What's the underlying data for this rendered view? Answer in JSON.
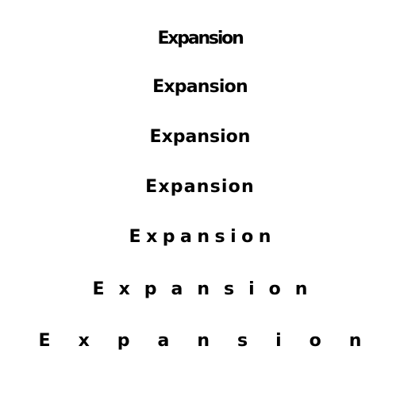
{
  "words": [
    "Expansion",
    "Expansion",
    "Expansion",
    "Expansion",
    "Expansion",
    "Expansion",
    "Expansion"
  ],
  "colors": {
    "background": "#ffffff",
    "text": "#000000"
  }
}
